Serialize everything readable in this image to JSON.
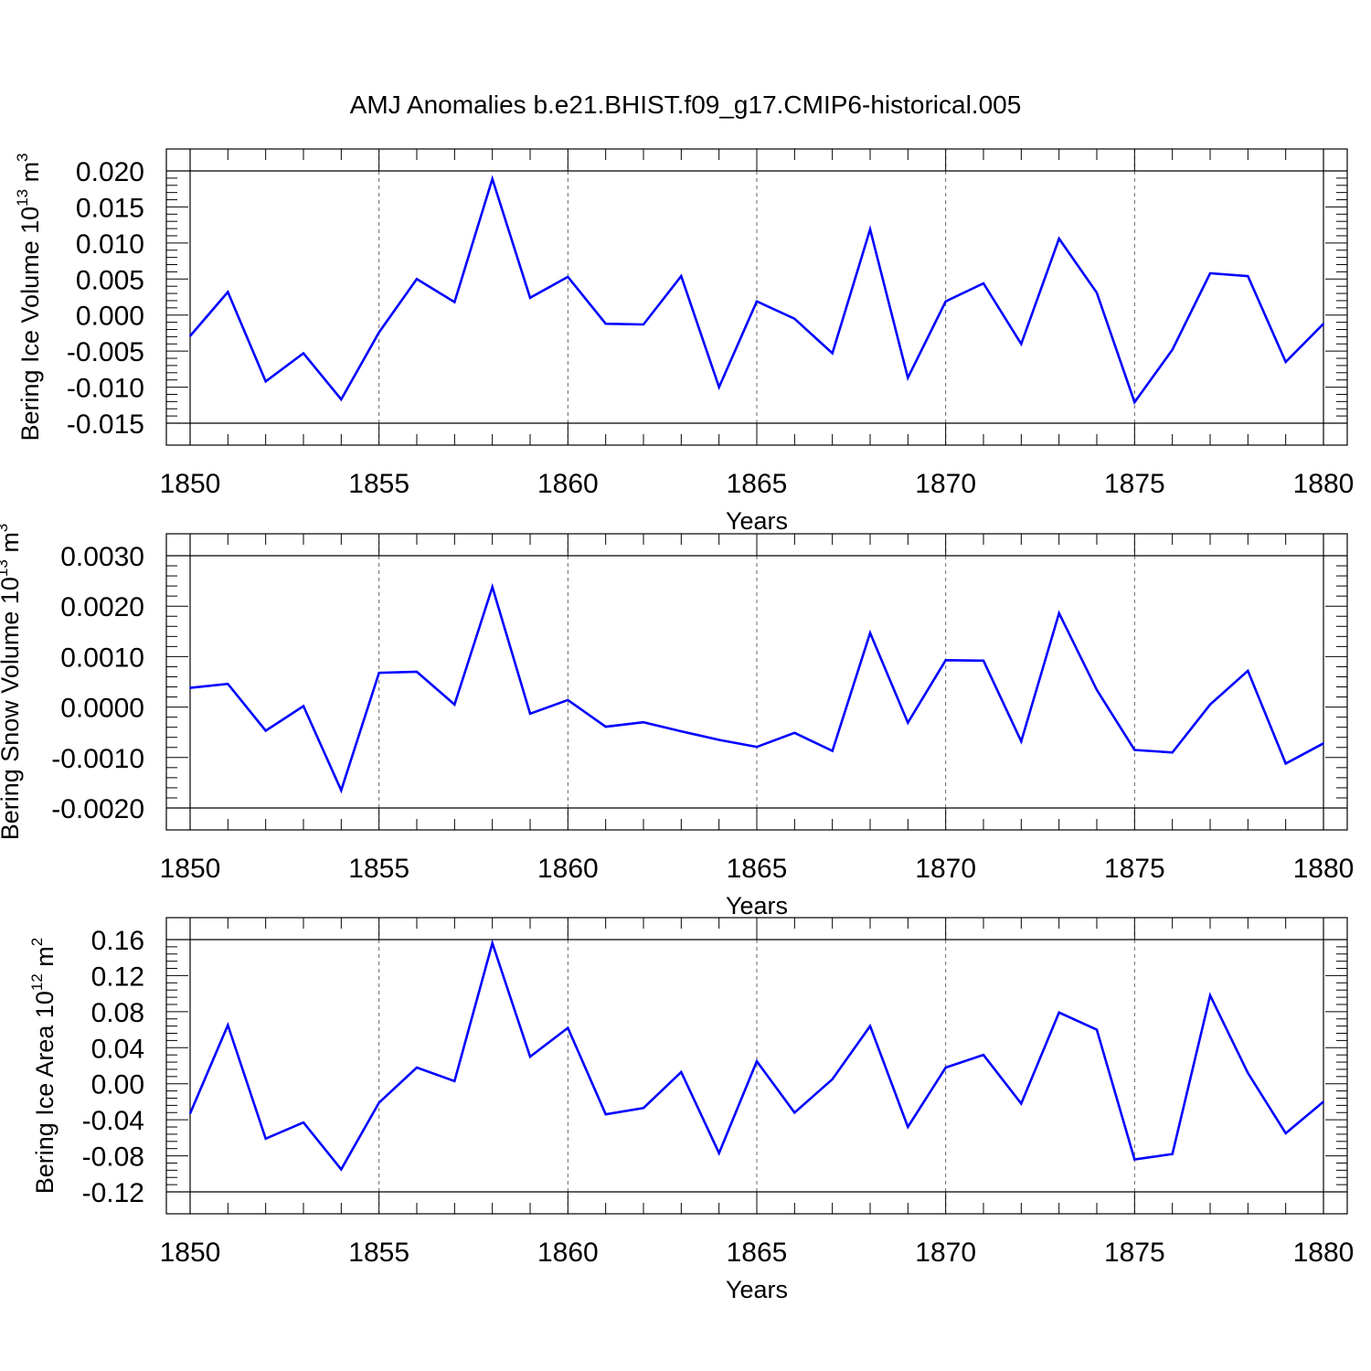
{
  "title": "AMJ Anomalies b.e21.BHIST.f09_g17.CMIP6-historical.005",
  "chart_data": [
    {
      "type": "line",
      "title": "AMJ Anomalies b.e21.BHIST.f09_g17.CMIP6-historical.005",
      "xlabel": "Years",
      "ylabel": "Bering Ice Volume 10",
      "ylabel_exp": "13",
      "ylabel_unit": " m",
      "ylabel_unit_exp": "3",
      "xlim": [
        1850,
        1880
      ],
      "ylim": [
        -0.015,
        0.02
      ],
      "xticks": [
        1850,
        1855,
        1860,
        1865,
        1870,
        1875,
        1880
      ],
      "xtick_labels": [
        "1850",
        "1855",
        "1860",
        "1865",
        "1870",
        "1875",
        "1880"
      ],
      "yticks": [
        -0.015,
        -0.01,
        -0.005,
        0.0,
        0.005,
        0.01,
        0.015,
        0.02
      ],
      "ytick_labels": [
        "-0.015",
        "-0.010",
        "-0.005",
        "0.000",
        "0.005",
        "0.010",
        "0.015",
        "0.020"
      ],
      "yminor_step": 0.001,
      "line_color": "#0000ff",
      "x": [
        1850,
        1851,
        1852,
        1853,
        1854,
        1855,
        1856,
        1857,
        1858,
        1859,
        1860,
        1861,
        1862,
        1863,
        1864,
        1865,
        1866,
        1867,
        1868,
        1869,
        1870,
        1871,
        1872,
        1873,
        1874,
        1875,
        1876,
        1877,
        1878,
        1879,
        1880
      ],
      "values": [
        -0.0029,
        0.0032,
        -0.0092,
        -0.0053,
        -0.0117,
        -0.0024,
        0.005,
        0.0018,
        0.0189,
        0.0024,
        0.0053,
        -0.0012,
        -0.0013,
        0.0054,
        -0.01,
        0.0019,
        -0.0005,
        -0.0053,
        0.0119,
        -0.0087,
        0.0019,
        0.0044,
        -0.004,
        0.0106,
        0.0031,
        -0.0121,
        -0.0048,
        0.0058,
        0.0054,
        -0.0065,
        -0.0012
      ]
    },
    {
      "type": "line",
      "xlabel": "Years",
      "ylabel": "Bering Snow Volume 10",
      "ylabel_exp": "13",
      "ylabel_unit": " m",
      "ylabel_unit_exp": "3",
      "xlim": [
        1850,
        1880
      ],
      "ylim": [
        -0.002,
        0.003
      ],
      "xticks": [
        1850,
        1855,
        1860,
        1865,
        1870,
        1875,
        1880
      ],
      "xtick_labels": [
        "1850",
        "1855",
        "1860",
        "1865",
        "1870",
        "1875",
        "1880"
      ],
      "yticks": [
        -0.002,
        -0.001,
        0.0,
        0.001,
        0.002,
        0.003
      ],
      "ytick_labels": [
        "-0.0020",
        "-0.0010",
        "0.0000",
        "0.0010",
        "0.0020",
        "0.0030"
      ],
      "yminor_step": 0.0002,
      "line_color": "#0000ff",
      "x": [
        1850,
        1851,
        1852,
        1853,
        1854,
        1855,
        1856,
        1857,
        1858,
        1859,
        1860,
        1861,
        1862,
        1863,
        1864,
        1865,
        1866,
        1867,
        1868,
        1869,
        1870,
        1871,
        1872,
        1873,
        1874,
        1875,
        1876,
        1877,
        1878,
        1879,
        1880
      ],
      "values": [
        0.00038,
        0.00046,
        -0.00047,
        2e-05,
        -0.00165,
        0.00068,
        0.0007,
        5e-05,
        0.00238,
        -0.00013,
        0.00014,
        -0.00039,
        -0.0003,
        -0.00048,
        -0.00065,
        -0.00079,
        -0.00051,
        -0.00087,
        0.00147,
        -0.00031,
        0.00093,
        0.00092,
        -0.00068,
        0.00186,
        0.00034,
        -0.00085,
        -0.0009,
        5e-05,
        0.00072,
        -0.00112,
        -0.00072
      ]
    },
    {
      "type": "line",
      "xlabel": "Years",
      "ylabel": "Bering Ice Area 10",
      "ylabel_exp": "12",
      "ylabel_unit": " m",
      "ylabel_unit_exp": "2",
      "xlim": [
        1850,
        1880
      ],
      "ylim": [
        -0.12,
        0.16
      ],
      "xticks": [
        1850,
        1855,
        1860,
        1865,
        1870,
        1875,
        1880
      ],
      "xtick_labels": [
        "1850",
        "1855",
        "1860",
        "1865",
        "1870",
        "1875",
        "1880"
      ],
      "yticks": [
        -0.12,
        -0.08,
        -0.04,
        0.0,
        0.04,
        0.08,
        0.12,
        0.16
      ],
      "ytick_labels": [
        "-0.12",
        "-0.08",
        "-0.04",
        "0.00",
        "0.04",
        "0.08",
        "0.12",
        "0.16"
      ],
      "yminor_step": 0.008,
      "line_color": "#0000ff",
      "x": [
        1850,
        1851,
        1852,
        1853,
        1854,
        1855,
        1856,
        1857,
        1858,
        1859,
        1860,
        1861,
        1862,
        1863,
        1864,
        1865,
        1866,
        1867,
        1868,
        1869,
        1870,
        1871,
        1872,
        1873,
        1874,
        1875,
        1876,
        1877,
        1878,
        1879,
        1880
      ],
      "values": [
        -0.033,
        0.065,
        -0.061,
        -0.043,
        -0.095,
        -0.021,
        0.018,
        0.003,
        0.156,
        0.03,
        0.062,
        -0.034,
        -0.027,
        0.013,
        -0.077,
        0.025,
        -0.032,
        0.005,
        0.064,
        -0.048,
        0.018,
        0.032,
        -0.022,
        0.079,
        0.06,
        -0.084,
        -0.078,
        0.098,
        0.012,
        -0.055,
        -0.02
      ]
    }
  ]
}
